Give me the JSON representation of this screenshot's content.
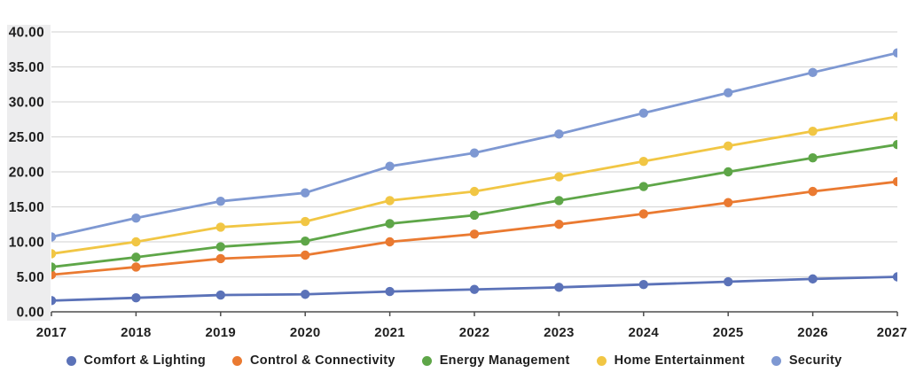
{
  "chart_data": {
    "type": "line",
    "title": "",
    "xlabel": "",
    "ylabel": "",
    "x_labels": [
      "2017",
      "2018",
      "2019",
      "2020",
      "2021",
      "2022",
      "2023",
      "2024",
      "2025",
      "2026",
      "2027"
    ],
    "y_ticks": [
      "0.00",
      "5.00",
      "10.00",
      "15.00",
      "20.00",
      "25.00",
      "30.00",
      "35.00",
      "40.00"
    ],
    "ylim": [
      0,
      40
    ],
    "ytick_step": 5,
    "grid": "horizontal",
    "legend_position": "bottom",
    "marker": "circle",
    "series": [
      {
        "name": "Comfort & Lighting",
        "color": "#5B72B8",
        "values": [
          1.6,
          2.0,
          2.4,
          2.5,
          2.9,
          3.2,
          3.5,
          3.9,
          4.3,
          4.7,
          5.0
        ]
      },
      {
        "name": "Control & Connectivity",
        "color": "#EA7A31",
        "values": [
          5.3,
          6.4,
          7.6,
          8.1,
          10.0,
          11.1,
          12.5,
          14.0,
          15.6,
          17.2,
          18.6
        ]
      },
      {
        "name": "Energy Management",
        "color": "#5EA648",
        "values": [
          6.4,
          7.8,
          9.3,
          10.1,
          12.6,
          13.8,
          15.9,
          17.9,
          20.0,
          22.0,
          23.9
        ]
      },
      {
        "name": "Home Entertainment",
        "color": "#F1C644",
        "values": [
          8.3,
          10.0,
          12.1,
          12.9,
          15.9,
          17.2,
          19.3,
          21.5,
          23.7,
          25.8,
          27.9
        ]
      },
      {
        "name": "Security",
        "color": "#7E98D2",
        "values": [
          10.7,
          13.4,
          15.8,
          17.0,
          20.8,
          22.7,
          25.4,
          28.4,
          31.3,
          34.2,
          37.0
        ]
      }
    ]
  },
  "style": {
    "background": "#FFFFFF",
    "ylabel_band_color": "#EDEDEE",
    "gridline_color": "#D9D9D9",
    "axis_color": "#4D4D4D",
    "text_color": "#1F1F1F"
  }
}
